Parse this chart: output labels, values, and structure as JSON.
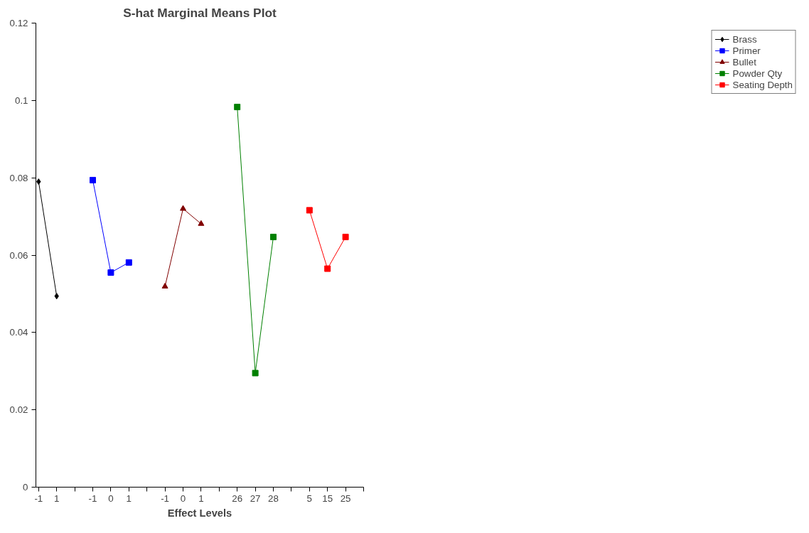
{
  "chart_data": {
    "type": "line",
    "title": "S-hat Marginal Means Plot",
    "xlabel": "Effect Levels",
    "categories": [
      "-1",
      "1",
      null,
      "-1",
      "0",
      "1",
      null,
      "-1",
      "0",
      "1",
      null,
      "26",
      "27",
      "28",
      null,
      "5",
      "15",
      "25",
      null
    ],
    "ylim": [
      0,
      0.12
    ],
    "yticks": [
      0,
      0.02,
      0.04,
      0.06,
      0.08,
      0.1,
      0.12
    ],
    "grid": false,
    "legend": "right",
    "series": [
      {
        "name": "Brass",
        "color": "#000000",
        "marker": "diamond",
        "values": [
          0.079,
          0.0494,
          null,
          null,
          null,
          null,
          null,
          null,
          null,
          null,
          null,
          null,
          null,
          null,
          null,
          null,
          null,
          null,
          null
        ]
      },
      {
        "name": "Primer",
        "color": "#0000ff",
        "marker": "square",
        "values": [
          null,
          null,
          null,
          0.0794,
          0.0555,
          0.0581,
          null,
          null,
          null,
          null,
          null,
          null,
          null,
          null,
          null,
          null,
          null,
          null,
          null
        ]
      },
      {
        "name": "Bullet",
        "color": "#800000",
        "marker": "triangle",
        "values": [
          null,
          null,
          null,
          null,
          null,
          null,
          null,
          0.0519,
          0.072,
          0.0681,
          null,
          null,
          null,
          null,
          null,
          null,
          null,
          null,
          null
        ]
      },
      {
        "name": "Powder Qty",
        "color": "#008000",
        "marker": "square",
        "values": [
          null,
          null,
          null,
          null,
          null,
          null,
          null,
          null,
          null,
          null,
          null,
          0.0983,
          0.0295,
          0.0647,
          null,
          null,
          null,
          null,
          null
        ]
      },
      {
        "name": "Seating Depth",
        "color": "#ff0000",
        "marker": "square",
        "values": [
          null,
          null,
          null,
          null,
          null,
          null,
          null,
          null,
          null,
          null,
          null,
          null,
          null,
          null,
          null,
          0.0716,
          0.0565,
          0.0647,
          null
        ]
      }
    ]
  }
}
